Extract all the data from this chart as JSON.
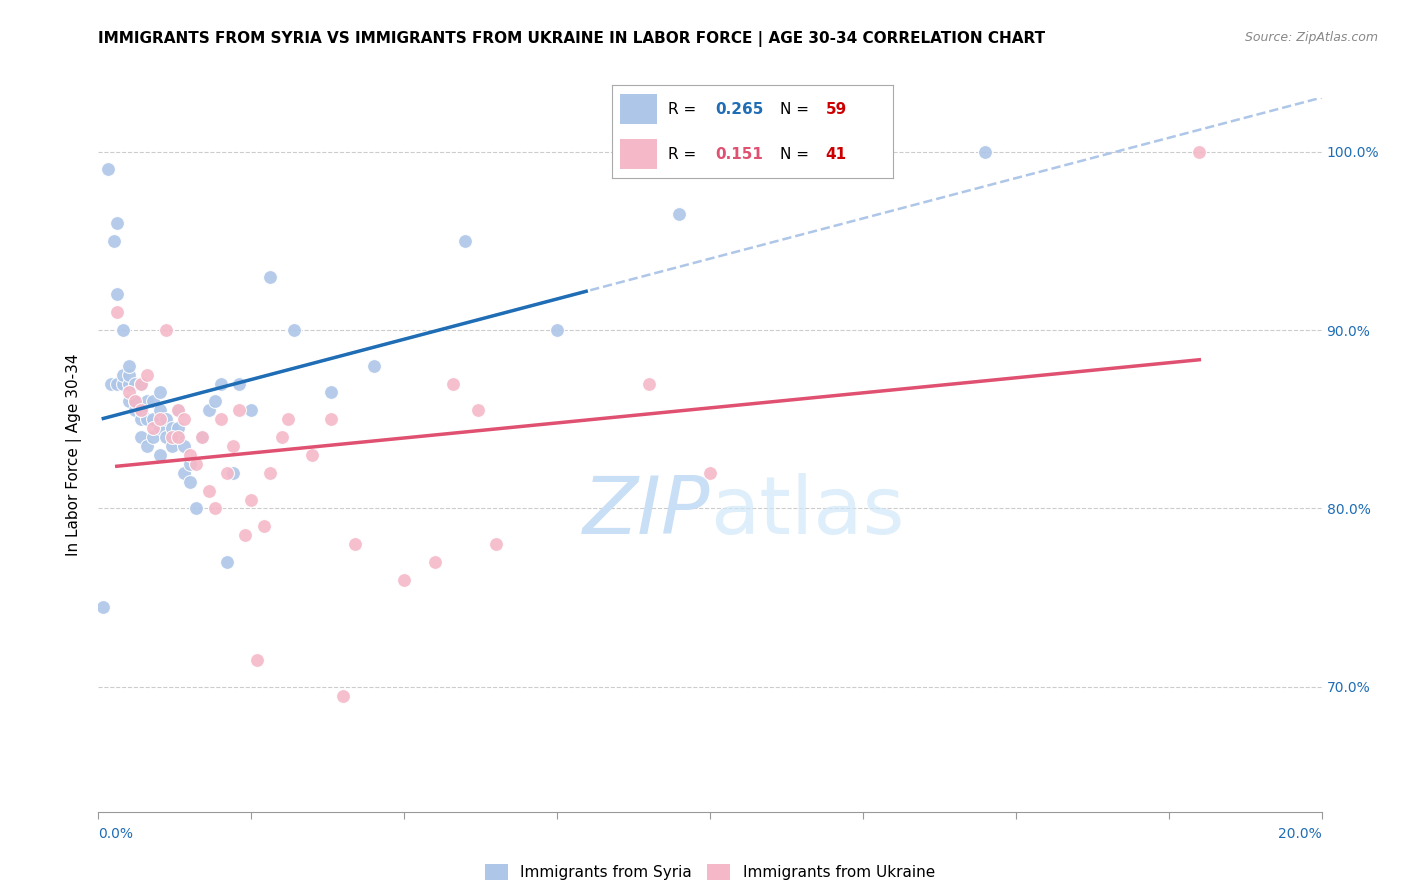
{
  "title": "IMMIGRANTS FROM SYRIA VS IMMIGRANTS FROM UKRAINE IN LABOR FORCE | AGE 30-34 CORRELATION CHART",
  "source": "Source: ZipAtlas.com",
  "ylabel": "In Labor Force | Age 30-34",
  "xlim": [
    0.0,
    0.2
  ],
  "ylim": [
    0.63,
    1.03
  ],
  "syria_R": 0.265,
  "syria_N": 59,
  "ukraine_R": 0.151,
  "ukraine_N": 41,
  "syria_color": "#aec6e8",
  "ukraine_color": "#f4b8c8",
  "syria_line_color": "#1f6db5",
  "ukraine_line_color": "#e05070",
  "dashed_line_color": "#aec6e8",
  "watermark_zip": "ZIP",
  "watermark_atlas": "atlas",
  "watermark_color": "#c8dff5",
  "legend_R_color": "#1f6db5",
  "legend_N_color": "#cc0000",
  "right_tick_color": "#1f6db5",
  "syria_x": [
    0.0008,
    0.0015,
    0.002,
    0.0025,
    0.003,
    0.003,
    0.003,
    0.004,
    0.004,
    0.004,
    0.005,
    0.005,
    0.005,
    0.005,
    0.006,
    0.006,
    0.006,
    0.007,
    0.007,
    0.007,
    0.007,
    0.008,
    0.008,
    0.008,
    0.009,
    0.009,
    0.009,
    0.01,
    0.01,
    0.01,
    0.01,
    0.011,
    0.011,
    0.012,
    0.012,
    0.013,
    0.013,
    0.013,
    0.014,
    0.014,
    0.015,
    0.015,
    0.016,
    0.017,
    0.018,
    0.019,
    0.02,
    0.021,
    0.022,
    0.023,
    0.025,
    0.028,
    0.032,
    0.038,
    0.045,
    0.06,
    0.075,
    0.095,
    0.145
  ],
  "syria_y": [
    0.745,
    0.99,
    0.87,
    0.95,
    0.96,
    0.87,
    0.92,
    0.87,
    0.875,
    0.9,
    0.86,
    0.87,
    0.875,
    0.88,
    0.855,
    0.86,
    0.87,
    0.84,
    0.85,
    0.855,
    0.87,
    0.835,
    0.85,
    0.86,
    0.84,
    0.85,
    0.86,
    0.83,
    0.845,
    0.855,
    0.865,
    0.84,
    0.85,
    0.835,
    0.845,
    0.84,
    0.845,
    0.855,
    0.82,
    0.835,
    0.815,
    0.825,
    0.8,
    0.84,
    0.855,
    0.86,
    0.87,
    0.77,
    0.82,
    0.87,
    0.855,
    0.93,
    0.9,
    0.865,
    0.88,
    0.95,
    0.9,
    0.965,
    1.0
  ],
  "ukraine_x": [
    0.003,
    0.005,
    0.006,
    0.007,
    0.007,
    0.008,
    0.009,
    0.01,
    0.011,
    0.012,
    0.013,
    0.013,
    0.014,
    0.015,
    0.016,
    0.017,
    0.018,
    0.019,
    0.02,
    0.021,
    0.022,
    0.023,
    0.024,
    0.025,
    0.026,
    0.027,
    0.028,
    0.03,
    0.031,
    0.035,
    0.038,
    0.04,
    0.042,
    0.05,
    0.055,
    0.058,
    0.062,
    0.065,
    0.09,
    0.1,
    0.18
  ],
  "ukraine_y": [
    0.91,
    0.865,
    0.86,
    0.855,
    0.87,
    0.875,
    0.845,
    0.85,
    0.9,
    0.84,
    0.84,
    0.855,
    0.85,
    0.83,
    0.825,
    0.84,
    0.81,
    0.8,
    0.85,
    0.82,
    0.835,
    0.855,
    0.785,
    0.805,
    0.715,
    0.79,
    0.82,
    0.84,
    0.85,
    0.83,
    0.85,
    0.695,
    0.78,
    0.76,
    0.77,
    0.87,
    0.855,
    0.78,
    0.87,
    0.82,
    1.0
  ],
  "background_color": "#ffffff",
  "grid_color": "#cccccc",
  "title_fontsize": 11,
  "axis_label_fontsize": 11,
  "tick_fontsize": 10,
  "source_fontsize": 9,
  "legend_fontsize": 11
}
